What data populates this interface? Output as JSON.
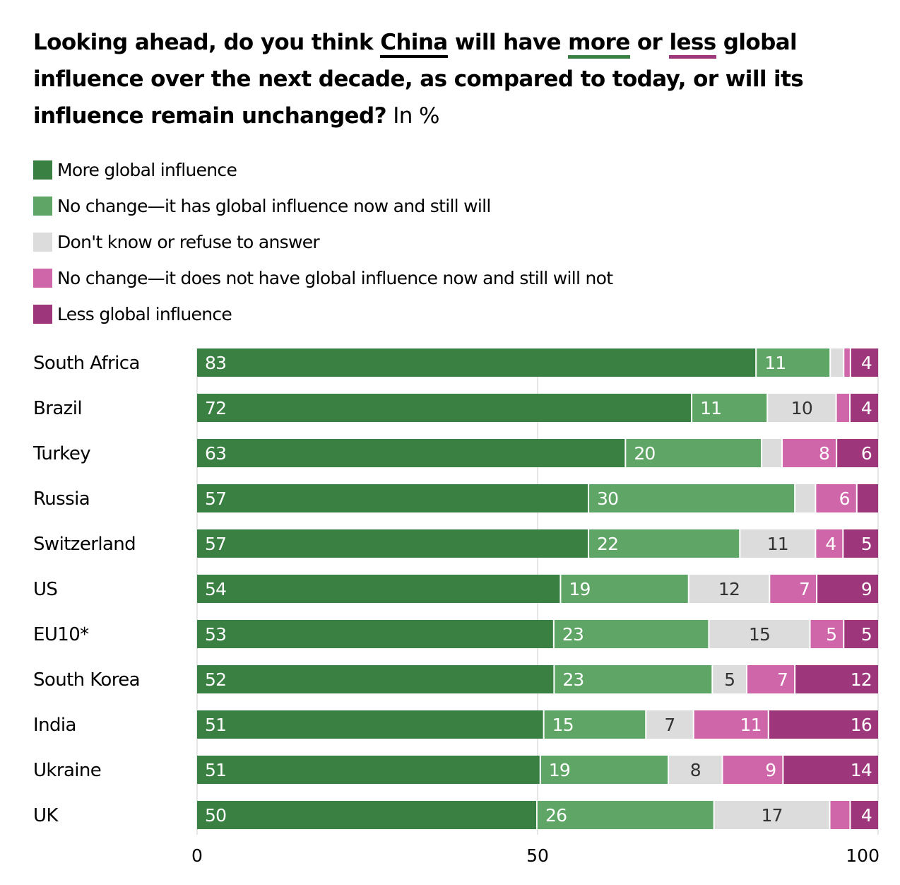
{
  "title": {
    "part1": "Looking ahead, do you think ",
    "china": "China",
    "part2": " will have ",
    "more": "more",
    "part3": " or ",
    "less": "less",
    "part4": " global influence over the next decade, as compared to today, or will its influence remain unchanged?",
    "unit": " In %"
  },
  "colors": {
    "more": "#3a8043",
    "no_change_has": "#5fa566",
    "dont_know": "#dcdcdc",
    "no_change_not": "#d066aa",
    "less": "#9e367b",
    "gridline": "#e6e6e6",
    "dark_label": "#333333",
    "light_label": "#ffffff"
  },
  "chart_data": {
    "type": "bar",
    "orientation": "horizontal",
    "stacked": true,
    "title": "Looking ahead, do you think China will have more or less global influence over the next decade, as compared to today, or will its influence remain unchanged? In %",
    "xlabel": "",
    "ylabel": "",
    "xlim": [
      0,
      100
    ],
    "xticks": [
      0,
      50,
      100
    ],
    "grid": true,
    "legend_position": "top-left",
    "categories": [
      "South Africa",
      "Brazil",
      "Turkey",
      "Russia",
      "Switzerland",
      "US",
      "EU10*",
      "South Korea",
      "India",
      "Ukraine",
      "UK"
    ],
    "series": [
      {
        "name": "More global influence",
        "key": "more",
        "values": [
          83,
          72,
          63,
          57,
          57,
          54,
          53,
          52,
          51,
          51,
          50
        ]
      },
      {
        "name": "No change—it has global influence now and still will",
        "key": "no_change_has",
        "values": [
          11,
          11,
          20,
          30,
          22,
          19,
          23,
          23,
          15,
          19,
          26
        ]
      },
      {
        "name": "Don't know or refuse to answer",
        "key": "dont_know",
        "values": [
          2,
          10,
          3,
          3,
          11,
          12,
          15,
          5,
          7,
          8,
          17
        ]
      },
      {
        "name": "No change—it does not have global influence now and still will not",
        "key": "no_change_not",
        "values": [
          1,
          2,
          8,
          6,
          4,
          7,
          5,
          7,
          11,
          9,
          3
        ]
      },
      {
        "name": "Less global influence",
        "key": "less",
        "values": [
          4,
          4,
          6,
          3,
          5,
          9,
          5,
          12,
          16,
          14,
          4
        ]
      }
    ],
    "labeled_values": {
      "note": "segments under 4 points are not labeled in the figure",
      "min_labeled": 4
    }
  }
}
